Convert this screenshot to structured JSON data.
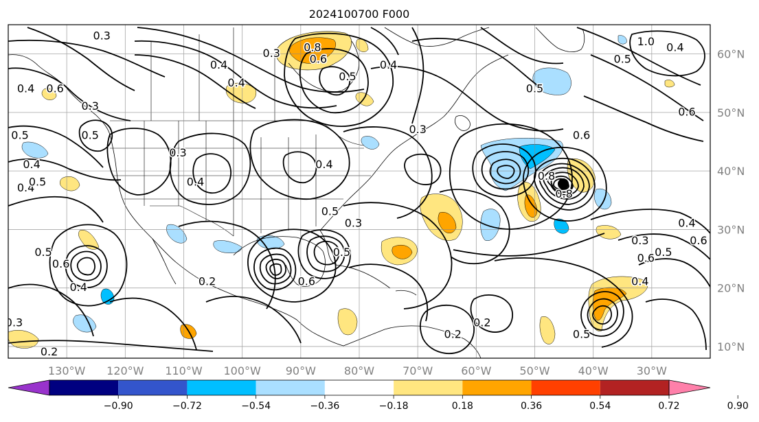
{
  "title": "2024100700 F000",
  "map": {
    "lon_range": [
      -140,
      -20
    ],
    "lat_range": [
      8,
      65
    ],
    "gridlines": true,
    "lon_labels": [
      "130°W",
      "120°W",
      "110°W",
      "100°W",
      "90°W",
      "80°W",
      "70°W",
      "60°W",
      "50°W",
      "40°W",
      "30°W"
    ],
    "lon_values": [
      -130,
      -120,
      -110,
      -100,
      -90,
      -80,
      -70,
      -60,
      -50,
      -40,
      -30
    ],
    "lat_labels": [
      "10°N",
      "20°N",
      "30°N",
      "40°N",
      "50°N",
      "60°N"
    ],
    "lat_values": [
      10,
      20,
      30,
      40,
      50,
      60
    ],
    "grid_lons": [
      -140,
      -130,
      -120,
      -110,
      -100,
      -90,
      -80,
      -70,
      -60,
      -50,
      -40,
      -30,
      -20
    ],
    "grid_lats": [
      10,
      20,
      30,
      40,
      50,
      60
    ]
  },
  "colorbar": {
    "labels": [
      "−0.90",
      "−0.72",
      "−0.54",
      "−0.36",
      "−0.18",
      "0.18",
      "0.36",
      "0.54",
      "0.72",
      "0.90"
    ],
    "colors": [
      "#9933cc",
      "#000080",
      "#3355cc",
      "#00bfff",
      "#aadfff",
      "#ffffff",
      "#ffe680",
      "#ffa500",
      "#ff4000",
      "#b22222",
      "#ff80aa"
    ],
    "extend": "both"
  },
  "contour_labels": [
    {
      "text": "0.3",
      "lon": -124,
      "lat": 63
    },
    {
      "text": "0.4",
      "lon": -137,
      "lat": 54
    },
    {
      "text": "0.5",
      "lon": -138,
      "lat": 46
    },
    {
      "text": "0.6",
      "lon": -132,
      "lat": 54
    },
    {
      "text": "0.3",
      "lon": -126,
      "lat": 51
    },
    {
      "text": "0.5",
      "lon": -126,
      "lat": 46
    },
    {
      "text": "0.4",
      "lon": -137,
      "lat": 37
    },
    {
      "text": "0.5",
      "lon": -135,
      "lat": 38
    },
    {
      "text": "0.4",
      "lon": -136,
      "lat": 41
    },
    {
      "text": "0.4",
      "lon": -101,
      "lat": 55
    },
    {
      "text": "0.4",
      "lon": -104,
      "lat": 58
    },
    {
      "text": "0.3",
      "lon": -95,
      "lat": 60
    },
    {
      "text": "0.8",
      "lon": -88,
      "lat": 61
    },
    {
      "text": "0.6",
      "lon": -87,
      "lat": 59
    },
    {
      "text": "0.5",
      "lon": -82,
      "lat": 56
    },
    {
      "text": "0.4",
      "lon": -75,
      "lat": 58
    },
    {
      "text": "0.3",
      "lon": -111,
      "lat": 43
    },
    {
      "text": "0.4",
      "lon": -108,
      "lat": 38
    },
    {
      "text": "0.4",
      "lon": -86,
      "lat": 41
    },
    {
      "text": "0.3",
      "lon": -70,
      "lat": 47
    },
    {
      "text": "0.5",
      "lon": -50,
      "lat": 54
    },
    {
      "text": "0.6",
      "lon": -42,
      "lat": 46
    },
    {
      "text": "0.5",
      "lon": -35,
      "lat": 59
    },
    {
      "text": "1.0",
      "lon": -31,
      "lat": 62
    },
    {
      "text": "0.4",
      "lon": -26,
      "lat": 61
    },
    {
      "text": "0.6",
      "lon": -24,
      "lat": 50
    },
    {
      "text": "0.8",
      "lon": -48,
      "lat": 39
    },
    {
      "text": "0.8",
      "lon": -45,
      "lat": 36
    },
    {
      "text": "0.5",
      "lon": -85,
      "lat": 33
    },
    {
      "text": "0.3",
      "lon": -81,
      "lat": 31
    },
    {
      "text": "0.5",
      "lon": -83,
      "lat": 26
    },
    {
      "text": "0.6",
      "lon": -89,
      "lat": 21
    },
    {
      "text": "0.5",
      "lon": -134,
      "lat": 26
    },
    {
      "text": "0.6",
      "lon": -131,
      "lat": 24
    },
    {
      "text": "0.4",
      "lon": -128,
      "lat": 20
    },
    {
      "text": "0.2",
      "lon": -106,
      "lat": 21
    },
    {
      "text": "0.3",
      "lon": -139,
      "lat": 14
    },
    {
      "text": "0.2",
      "lon": -133,
      "lat": 9
    },
    {
      "text": "0.2",
      "lon": -64,
      "lat": 12
    },
    {
      "text": "0.2",
      "lon": -59,
      "lat": 14
    },
    {
      "text": "0.4",
      "lon": -24,
      "lat": 31
    },
    {
      "text": "0.6",
      "lon": -22,
      "lat": 28
    },
    {
      "text": "0.3",
      "lon": -32,
      "lat": 28
    },
    {
      "text": "0.6",
      "lon": -31,
      "lat": 25
    },
    {
      "text": "0.5",
      "lon": -28,
      "lat": 26
    },
    {
      "text": "0.4",
      "lon": -32,
      "lat": 21
    },
    {
      "text": "0.5",
      "lon": -42,
      "lat": 12
    }
  ]
}
